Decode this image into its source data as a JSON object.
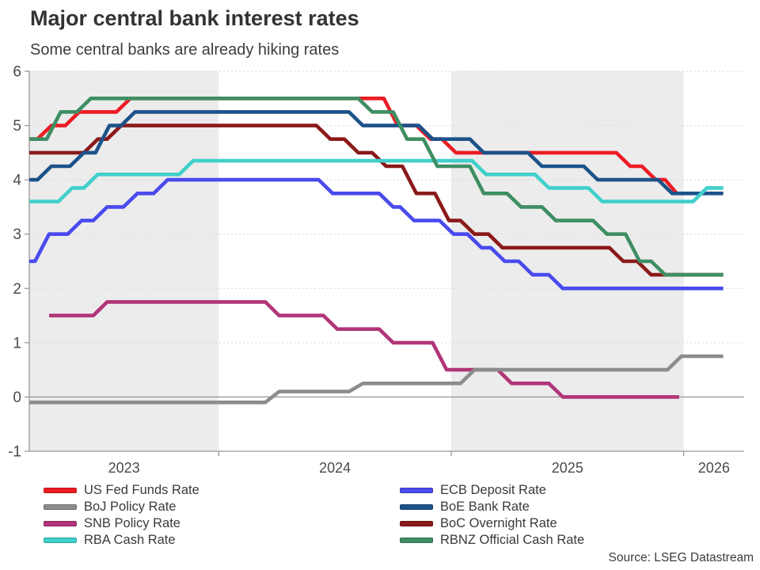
{
  "page": {
    "source": "Source: LSEG Datastream"
  },
  "colors": {
    "background": "#ffffff",
    "band_shaded": "#ececec",
    "gridline": "#d9d9d9",
    "axis": "#999999",
    "zero_line": "#8a8a8a",
    "tick_text": "#4a4a4a"
  },
  "chart_data": {
    "type": "line",
    "title": "Major central bank interest rates",
    "subtitle": "Some central banks are already hiking rates",
    "xlabel": "",
    "ylabel": "",
    "xlim": [
      2023.185,
      2026.26
    ],
    "ylim": [
      -1,
      6
    ],
    "yticks": [
      -1,
      0,
      1,
      2,
      3,
      4,
      5,
      6
    ],
    "grid": "dashed-horizontal",
    "legend_position": "bottom-two-columns",
    "years": [
      {
        "label": "2023",
        "start": 2023.185,
        "end": 2024,
        "shaded": true
      },
      {
        "label": "2024",
        "start": 2024,
        "end": 2025,
        "shaded": false
      },
      {
        "label": "2025",
        "start": 2025,
        "end": 2026,
        "shaded": true
      },
      {
        "label": "2026",
        "start": 2026,
        "end": 2026.26,
        "shaded": false
      }
    ],
    "step_ramp_years": 0.06,
    "series": [
      {
        "key": "fed",
        "name": "US Fed Funds Rate",
        "color": "#ec1c24",
        "end": 2025.97,
        "points": [
          [
            2023.185,
            4.75
          ],
          [
            2023.22,
            5.0
          ],
          [
            2023.34,
            5.25
          ],
          [
            2023.56,
            5.5
          ],
          [
            2024.71,
            5.0
          ],
          [
            2024.85,
            4.75
          ],
          [
            2024.96,
            4.5
          ],
          [
            2025.71,
            4.25
          ],
          [
            2025.82,
            4.0
          ],
          [
            2025.92,
            3.75
          ]
        ]
      },
      {
        "key": "boc",
        "name": "BoC Overnight Rate",
        "color": "#8b1a1a",
        "end": 2026.17,
        "points": [
          [
            2023.185,
            4.5
          ],
          [
            2023.42,
            4.75
          ],
          [
            2023.52,
            5.0
          ],
          [
            2024.42,
            4.75
          ],
          [
            2024.54,
            4.5
          ],
          [
            2024.66,
            4.25
          ],
          [
            2024.79,
            3.75
          ],
          [
            2024.93,
            3.25
          ],
          [
            2025.04,
            3.0
          ],
          [
            2025.16,
            2.75
          ],
          [
            2025.68,
            2.5
          ],
          [
            2025.8,
            2.25
          ]
        ]
      },
      {
        "key": "snb",
        "name": "SNB Policy Rate",
        "color": "#b13579",
        "end": 2025.98,
        "points": [
          [
            2023.27,
            1.5
          ],
          [
            2023.46,
            1.75
          ],
          [
            2024.2,
            1.5
          ],
          [
            2024.45,
            1.25
          ],
          [
            2024.69,
            1.0
          ],
          [
            2024.92,
            0.5
          ],
          [
            2025.2,
            0.25
          ],
          [
            2025.42,
            0.0
          ]
        ]
      },
      {
        "key": "boj",
        "name": "BoJ Policy Rate",
        "color": "#8c8c8c",
        "end": 2026.17,
        "points": [
          [
            2023.185,
            -0.1
          ],
          [
            2024.2,
            0.1
          ],
          [
            2024.56,
            0.25
          ],
          [
            2025.04,
            0.5
          ],
          [
            2025.93,
            0.75
          ]
        ]
      },
      {
        "key": "ecb",
        "name": "ECB Deposit Rate",
        "color": "#4a4aef",
        "end": 2026.17,
        "points": [
          [
            2023.185,
            2.5
          ],
          [
            2023.21,
            3.0
          ],
          [
            2023.35,
            3.25
          ],
          [
            2023.46,
            3.5
          ],
          [
            2023.59,
            3.75
          ],
          [
            2023.72,
            4.0
          ],
          [
            2024.43,
            3.75
          ],
          [
            2024.69,
            3.5
          ],
          [
            2024.78,
            3.25
          ],
          [
            2024.95,
            3.0
          ],
          [
            2025.07,
            2.75
          ],
          [
            2025.17,
            2.5
          ],
          [
            2025.29,
            2.25
          ],
          [
            2025.42,
            2.0
          ]
        ]
      },
      {
        "key": "boe",
        "name": "BoE Bank Rate",
        "color": "#1c5289",
        "end": 2026.17,
        "points": [
          [
            2023.185,
            4.0
          ],
          [
            2023.22,
            4.25
          ],
          [
            2023.36,
            4.5
          ],
          [
            2023.47,
            5.0
          ],
          [
            2023.58,
            5.25
          ],
          [
            2024.56,
            5.0
          ],
          [
            2024.86,
            4.75
          ],
          [
            2025.08,
            4.5
          ],
          [
            2025.33,
            4.25
          ],
          [
            2025.57,
            4.0
          ],
          [
            2025.89,
            3.75
          ]
        ]
      },
      {
        "key": "rba",
        "name": "RBA Cash Rate",
        "color": "#40d0cb",
        "end": 2026.17,
        "points": [
          [
            2023.185,
            3.6
          ],
          [
            2023.31,
            3.85
          ],
          [
            2023.42,
            4.1
          ],
          [
            2023.83,
            4.35
          ],
          [
            2025.09,
            4.1
          ],
          [
            2025.36,
            3.85
          ],
          [
            2025.59,
            3.6
          ],
          [
            2026.04,
            3.85
          ]
        ]
      },
      {
        "key": "rbnz",
        "name": "RBNZ Official Cash Rate",
        "color": "#3e8e63",
        "end": 2026.17,
        "points": [
          [
            2023.185,
            4.75
          ],
          [
            2023.26,
            5.25
          ],
          [
            2023.39,
            5.5
          ],
          [
            2024.6,
            5.25
          ],
          [
            2024.75,
            4.75
          ],
          [
            2024.88,
            4.25
          ],
          [
            2025.08,
            3.75
          ],
          [
            2025.24,
            3.5
          ],
          [
            2025.39,
            3.25
          ],
          [
            2025.61,
            3.0
          ],
          [
            2025.75,
            2.5
          ],
          [
            2025.86,
            2.25
          ]
        ]
      }
    ]
  },
  "legend": {
    "columns": [
      [
        "fed",
        "boj",
        "snb",
        "rba"
      ],
      [
        "ecb",
        "boe",
        "boc",
        "rbnz"
      ]
    ]
  }
}
